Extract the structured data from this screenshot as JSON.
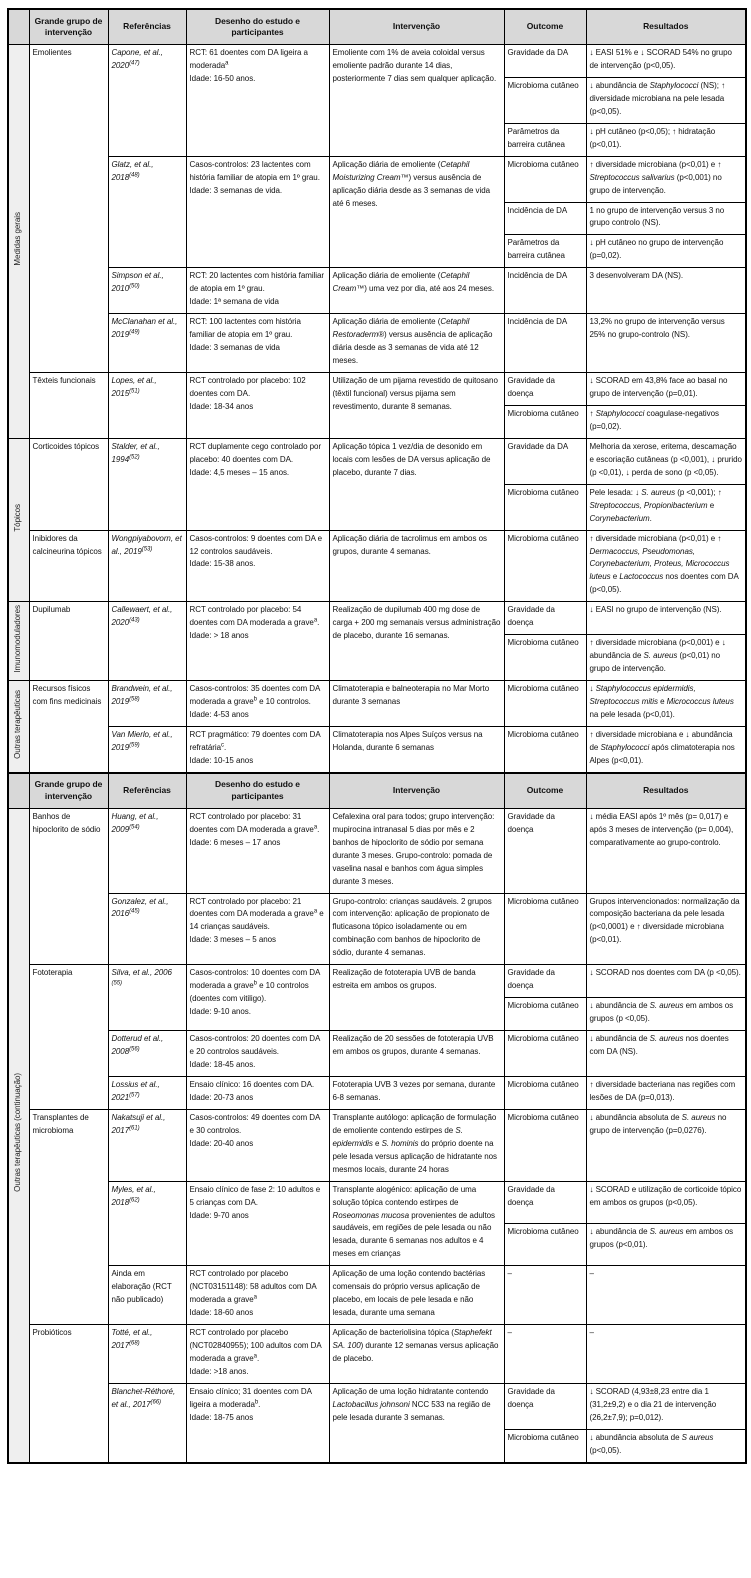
{
  "columns": [
    "Grande grupo de intervenção",
    "Referências",
    "Desenho do estudo e participantes",
    "Intervenção",
    "Outcome",
    "Resultados"
  ],
  "parts": [
    {
      "sections": [
        {
          "label": "Medidas gerais",
          "groups": [
            {
              "name": "Emolientes",
              "studies": [
                {
                  "ref": "<i>Capone, et al., 2020<sup>(47)</sup></i>",
                  "design": "RCT: 61 doentes com DA ligeira a moderada<sup>a</sup><br>Idade: 16-50 anos.",
                  "intervention": "Emoliente com 1% de aveia coloidal versus emoliente padrão durante 14 dias, posteriormente 7 dias sem qualquer aplicação.",
                  "outcomes": [
                    {
                      "outcome": "Gravidade da DA",
                      "result": "↓ EASI 51% e ↓ SCORAD 54% no grupo de intervenção (p&lt;0,05)."
                    },
                    {
                      "outcome": "Microbioma cutâneo",
                      "result": "↓ abundância de <i>Staphylococci</i> (NS); ↑ diversidade microbiana na pele lesada (p&lt;0,05)."
                    },
                    {
                      "outcome": "Parâmetros da barreira cutânea",
                      "result": "↓ pH cutâneo (p&lt;0,05); ↑ hidratação (p&lt;0,01)."
                    }
                  ]
                },
                {
                  "ref": "<i>Glatz, et al., 2018<sup>(48)</sup></i>",
                  "design": "Casos-controlos: 23 lactentes com história familiar de atopia em 1º grau.<br>Idade: 3 semanas de vida.",
                  "intervention": "Aplicação diária de emoliente (<i>Cetaphil Moisturizing Cream</i>™) versus ausência de aplicação diária desde as 3 semanas de vida até 6 meses.",
                  "outcomes": [
                    {
                      "outcome": "Microbioma cutâneo",
                      "result": "↑ diversidade microbiana (p&lt;0,01) e ↑ <i>Streptococcus salivarius</i> (p&lt;0,001) no grupo de intervenção."
                    },
                    {
                      "outcome": "Incidência de DA",
                      "result": "1 no grupo de intervenção versus 3 no grupo controlo (NS)."
                    },
                    {
                      "outcome": "Parâmetros da barreira cutânea",
                      "result": "↓ pH cutâneo no grupo de intervenção (p=0,02)."
                    }
                  ]
                },
                {
                  "ref": "<i>Simpson et al., 2010<sup>(50)</sup></i>",
                  "design": "RCT: 20 lactentes com história familiar de atopia em 1º grau.<br>Idade: 1ª semana de vida",
                  "intervention": "Aplicação diária de emoliente (<i>Cetaphil Cream</i>™) uma vez por dia, até aos 24 meses.",
                  "outcomes": [
                    {
                      "outcome": "Incidência de DA",
                      "result": "3 desenvolveram DA (NS)."
                    }
                  ]
                },
                {
                  "ref": "<i>McClanahan et al., 2019<sup>(49)</sup></i>",
                  "design": "RCT: 100 lactentes com história familiar de atopia em 1º grau.<br>Idade: 3 semanas de vida",
                  "intervention": "Aplicação diária de emoliente (<i>Cetaphil Restoraderm</i>®) versus ausência de aplicação diária desde as 3 semanas de vida até 12 meses.",
                  "outcomes": [
                    {
                      "outcome": "Incidência de DA",
                      "result": "13,2% no grupo de intervenção versus 25% no grupo-controlo (NS)."
                    }
                  ]
                }
              ]
            },
            {
              "name": "Têxteis funcionais",
              "studies": [
                {
                  "ref": "<i>Lopes, et al., 2015<sup>(51)</sup></i>",
                  "design": "RCT controlado por placebo: 102 doentes com DA.<br>Idade: 18-34 anos",
                  "intervention": "Utilização de um pijama revestido de quitosano (têxtil funcional) versus pijama sem revestimento, durante 8 semanas.",
                  "outcomes": [
                    {
                      "outcome": "Gravidade da doença",
                      "result": "↓ SCORAD em 43,8% face ao basal no grupo de intervenção (p=0,01)."
                    },
                    {
                      "outcome": "Microbioma cutâneo",
                      "result": "↑ <i>Staphylococci</i> coagulase-negativos (p=0,02)."
                    }
                  ]
                }
              ]
            }
          ]
        },
        {
          "label": "Tópicos",
          "groups": [
            {
              "name": "Corticoides tópicos",
              "studies": [
                {
                  "ref": "<i>Stalder, et al., 1994<sup>(52)</sup></i>",
                  "design": "RCT duplamente cego controlado por placebo: 40 doentes com DA.<br>Idade: 4,5 meses – 15 anos.",
                  "intervention": "Aplicação tópica 1 vez/dia de desonido em locais com lesões de DA versus aplicação de placebo, durante 7 dias.",
                  "outcomes": [
                    {
                      "outcome": "Gravidade da DA",
                      "result": "Melhoria da xerose, eritema, descamação e escoriação cutâneas (p &lt;0,001), ↓ prurido (p &lt;0,01), ↓ perda de sono (p &lt;0,05)."
                    },
                    {
                      "outcome": "Microbioma cutâneo",
                      "result": "Pele lesada: ↓ <i>S. aureus</i> (p &lt;0,001); ↑ <i>Streptococcus, Propionibacterium</i> e <i>Corynebacterium</i>."
                    }
                  ]
                }
              ]
            },
            {
              "name": "Inibidores da calcineurina tópicos",
              "studies": [
                {
                  "ref": "<i>Wongpiyabovorn, et al., 2019<sup>(53)</sup></i>",
                  "design": "Casos-controlos: 9 doentes com DA e 12 controlos saudáveis.<br>Idade: 15-38 anos.",
                  "intervention": "Aplicação diária de tacrolimus em ambos os grupos, durante 4 semanas.",
                  "outcomes": [
                    {
                      "outcome": "Microbioma cutâneo",
                      "result": "↑ diversidade microbiana (p&lt;0,01) e ↑ <i>Dermacoccus, Pseudomonas, Corynebacterium, Proteus, Micrococcus luteus</i> e <i>Lactococcus</i> nos doentes com DA (p&lt;0,05)."
                    }
                  ]
                }
              ]
            }
          ]
        },
        {
          "label": "Imunomoduladores",
          "groups": [
            {
              "name": "Dupilumab",
              "studies": [
                {
                  "ref": "<i>Callewaert, et al., 2020<sup>(43)</sup></i>",
                  "design": "RCT controlado por placebo: 54 doentes com DA moderada a grave<sup>a</sup>.<br>Idade: &gt; 18 anos",
                  "intervention": "Realização de dupilumab 400 mg dose de carga + 200 mg semanais versus administração de placebo, durante 16 semanas.",
                  "outcomes": [
                    {
                      "outcome": "Gravidade da doença",
                      "result": "↓ EASI no grupo de intervenção (NS)."
                    },
                    {
                      "outcome": "Microbioma cutâneo",
                      "result": "↑ diversidade microbiana (p&lt;0,001) e ↓ abundância de <i>S. aureus</i> (p&lt;0,01) no grupo de intervenção."
                    }
                  ]
                }
              ]
            }
          ]
        },
        {
          "label": "Outras terapêuticas",
          "groups": [
            {
              "name": "Recursos físicos com fins medicinais",
              "studies": [
                {
                  "ref": "<i>Brandwein, et al., 2019<sup>(58)</sup></i>",
                  "design": "Casos-controlos: 35 doentes com DA moderada a grave<sup>b</sup> e 10 controlos.<br>Idade: 4-53 anos",
                  "intervention": "Climatoterapia e balneoterapia no Mar Morto durante 3 semanas",
                  "outcomes": [
                    {
                      "outcome": "Microbioma cutâneo",
                      "result": "↓ <i>Staphylococcus epidermidis, Streptococcus mitis</i> e <i>Micrococcus luteus</i> na pele lesada (p&lt;0,01)."
                    }
                  ]
                },
                {
                  "ref": "<i>Van Mierlo, et al., 2019<sup>(59)</sup></i>",
                  "design": "RCT pragmático: 79 doentes com DA refratária<sup>c</sup>.<br>Idade: 10-15 anos",
                  "intervention": "Climatoterapia nos Alpes Suíços versus na Holanda, durante 6 semanas",
                  "outcomes": [
                    {
                      "outcome": "Microbioma cutâneo",
                      "result": "↑ diversidade microbiana e ↓ abundância de <i>Staphylococci</i> após climatoterapia nos Alpes (p&lt;0,01)."
                    }
                  ]
                }
              ]
            }
          ]
        }
      ]
    },
    {
      "sections": [
        {
          "label": "Outras terapêuticas (continuação)",
          "groups": [
            {
              "name": "Banhos de hipoclorito de sódio",
              "studies": [
                {
                  "ref": "<i>Huang, et al., 2009<sup>(54)</sup></i>",
                  "design": "RCT controlado por placebo: 31 doentes com DA moderada a grave<sup>a</sup>.<br>Idade: 6 meses – 17 anos",
                  "intervention": "Cefalexina oral para todos; grupo intervenção: mupirocina intranasal 5 dias por mês e 2 banhos de hipoclorito de sódio por semana durante 3 meses. Grupo-controlo: pomada de vaselina nasal e banhos com água simples durante 3 meses.",
                  "outcomes": [
                    {
                      "outcome": "Gravidade da doença",
                      "result": "↓ média EASI após 1º mês (p= 0,017) e após 3 meses de intervenção (p= 0,004), comparativamente ao grupo-controlo."
                    }
                  ]
                },
                {
                  "ref": "<i>Gonzalez, et al., 2016<sup>(45)</sup></i>",
                  "design": "RCT controlado por placebo: 21 doentes com DA moderada a grave<sup>a</sup> e 14 crianças saudáveis.<br>Idade: 3 meses – 5 anos",
                  "intervention": "Grupo-controlo: crianças saudáveis. 2 grupos com intervenção: aplicação de propionato de fluticasona tópico isoladamente ou em combinação com banhos de hipoclorito de sódio, durante 4 semanas.",
                  "outcomes": [
                    {
                      "outcome": "Microbioma cutâneo",
                      "result": "Grupos intervencionados: normalização da composição bacteriana da pele lesada (p&lt;0,0001) e ↑ diversidade microbiana (p&lt;0,01)."
                    }
                  ]
                }
              ]
            },
            {
              "name": "Fototerapia",
              "studies": [
                {
                  "ref": "<i>Silva, et al., 2006 <sup>(55)</sup></i>",
                  "design": "Casos-controlos: 10 doentes com DA moderada a grave<sup>b</sup> e 10 controlos (doentes com vitiligo).<br>Idade: 9-10 anos.",
                  "intervention": "Realização de fototerapia UVB de banda estreita em ambos os grupos.",
                  "outcomes": [
                    {
                      "outcome": "Gravidade da doença",
                      "result": "↓ SCORAD nos doentes com DA (p &lt;0,05)."
                    },
                    {
                      "outcome": "Microbioma cutâneo",
                      "result": "↓ abundância de <i>S. aureus</i> em ambos os grupos (p &lt;0,05)."
                    }
                  ]
                },
                {
                  "ref": "<i>Dotterud et al., 2008<sup>(56)</sup></i>",
                  "design": "Casos-controlos: 20 doentes com DA e 20 controlos saudáveis.<br>Idade: 18-45 anos.",
                  "intervention": "Realização de 20 sessões de fototerapia UVB em ambos os grupos, durante 4 semanas.",
                  "outcomes": [
                    {
                      "outcome": "Microbioma cutâneo",
                      "result": "↓ abundância de <i>S. aureus</i> nos doentes com DA (NS)."
                    }
                  ]
                },
                {
                  "ref": "<i>Lossius et al., 2021<sup>(57)</sup></i>",
                  "design": "Ensaio clínico: 16 doentes com DA.<br>Idade: 20-73 anos",
                  "intervention": "Fototerapia UVB 3 vezes por semana, durante 6-8 semanas.",
                  "outcomes": [
                    {
                      "outcome": "Microbioma cutâneo",
                      "result": "↑ diversidade bacteriana nas regiões com lesões de DA (p=0,013)."
                    }
                  ]
                }
              ]
            },
            {
              "name": "Transplantes de microbioma",
              "studies": [
                {
                  "ref": "<i>Nakatsuji et al., 2017<sup>(61)</sup></i>",
                  "design": "Casos-controlos: 49 doentes com DA e 30 controlos.<br>Idade: 20-40 anos",
                  "intervention": "Transplante autólogo: aplicação de formulação de emoliente contendo estirpes de <i>S. epidermidis</i> e <i>S. hominis</i> do próprio doente na pele lesada versus aplicação de hidratante nos mesmos locais, durante 24 horas",
                  "outcomes": [
                    {
                      "outcome": "Microbioma cutâneo",
                      "result": "↓ abundância absoluta de <i>S. aureus</i> no grupo de intervenção (p=0,0276)."
                    }
                  ]
                },
                {
                  "ref": "<i>Myles, et al., 2018<sup>(62)</sup></i>",
                  "design": "Ensaio clínico de fase 2: 10 adultos e 5 crianças com DA.<br>Idade: 9-70 anos",
                  "intervention": "Transplante alogénico: aplicação de uma solução tópica contendo estirpes de <i>Roseomonas mucosa</i> provenientes de adultos saudáveis, em regiões de pele lesada ou não lesada, durante 6 semanas nos adultos e 4 meses em crianças",
                  "outcomes": [
                    {
                      "outcome": "Gravidade da doença",
                      "result": "↓ SCORAD e utilização de corticoide tópico em ambos os grupos (p&lt;0,05)."
                    },
                    {
                      "outcome": "Microbioma cutâneo",
                      "result": "↓ abundância de <i>S. aureus</i> em ambos os grupos (p&lt;0,01)."
                    }
                  ]
                },
                {
                  "ref": "Ainda em elaboração (RCT não publicado)",
                  "design": "RCT controlado por placebo (NCT03151148): 58 adultos com DA moderada a grave<sup>a</sup><br>Idade: 18-60 anos",
                  "intervention": "Aplicação de uma loção contendo bactérias comensais do próprio versus aplicação de placebo, em locais de pele lesada e não lesada, durante uma semana",
                  "outcomes": [
                    {
                      "outcome": "–",
                      "result": "–"
                    }
                  ]
                }
              ]
            },
            {
              "name": "Probióticos",
              "studies": [
                {
                  "ref": "<i>Totté, et al., 2017<sup>(68)</sup></i>",
                  "design": "RCT controlado por placebo (NCT02840955); 100 adultos com DA moderada a grave<sup>a</sup>.<br>Idade: &gt;18 anos.",
                  "intervention": "Aplicação de bacteriolisina tópica (<i>Staphefekt SA. 100</i>) durante 12 semanas versus aplicação de placebo.",
                  "outcomes": [
                    {
                      "outcome": "–",
                      "result": "–"
                    }
                  ]
                },
                {
                  "ref": "<i>Blanchet-Réthoré, et al., 2017<sup>(66)</sup></i>",
                  "design": "Ensaio clínico; 31 doentes com DA ligeira a moderada<sup>b</sup>.<br>Idade: 18-75 anos",
                  "intervention": "Aplicação de uma loção hidratante contendo <i>Lactobacillus johnsoni</i> NCC 533 na região de pele lesada durante 3 semanas.",
                  "outcomes": [
                    {
                      "outcome": "Gravidade da doença",
                      "result": "↓ SCORAD (4,93±8,23 entre dia 1 (31,2±9,2) e o dia 21 de intervenção (26,2±7,9); p=0,012)."
                    },
                    {
                      "outcome": "Microbioma cutâneo",
                      "result": "↓ abundância absoluta de <i>S aureus</i> (p&lt;0,05)."
                    }
                  ]
                }
              ]
            }
          ]
        }
      ]
    }
  ]
}
